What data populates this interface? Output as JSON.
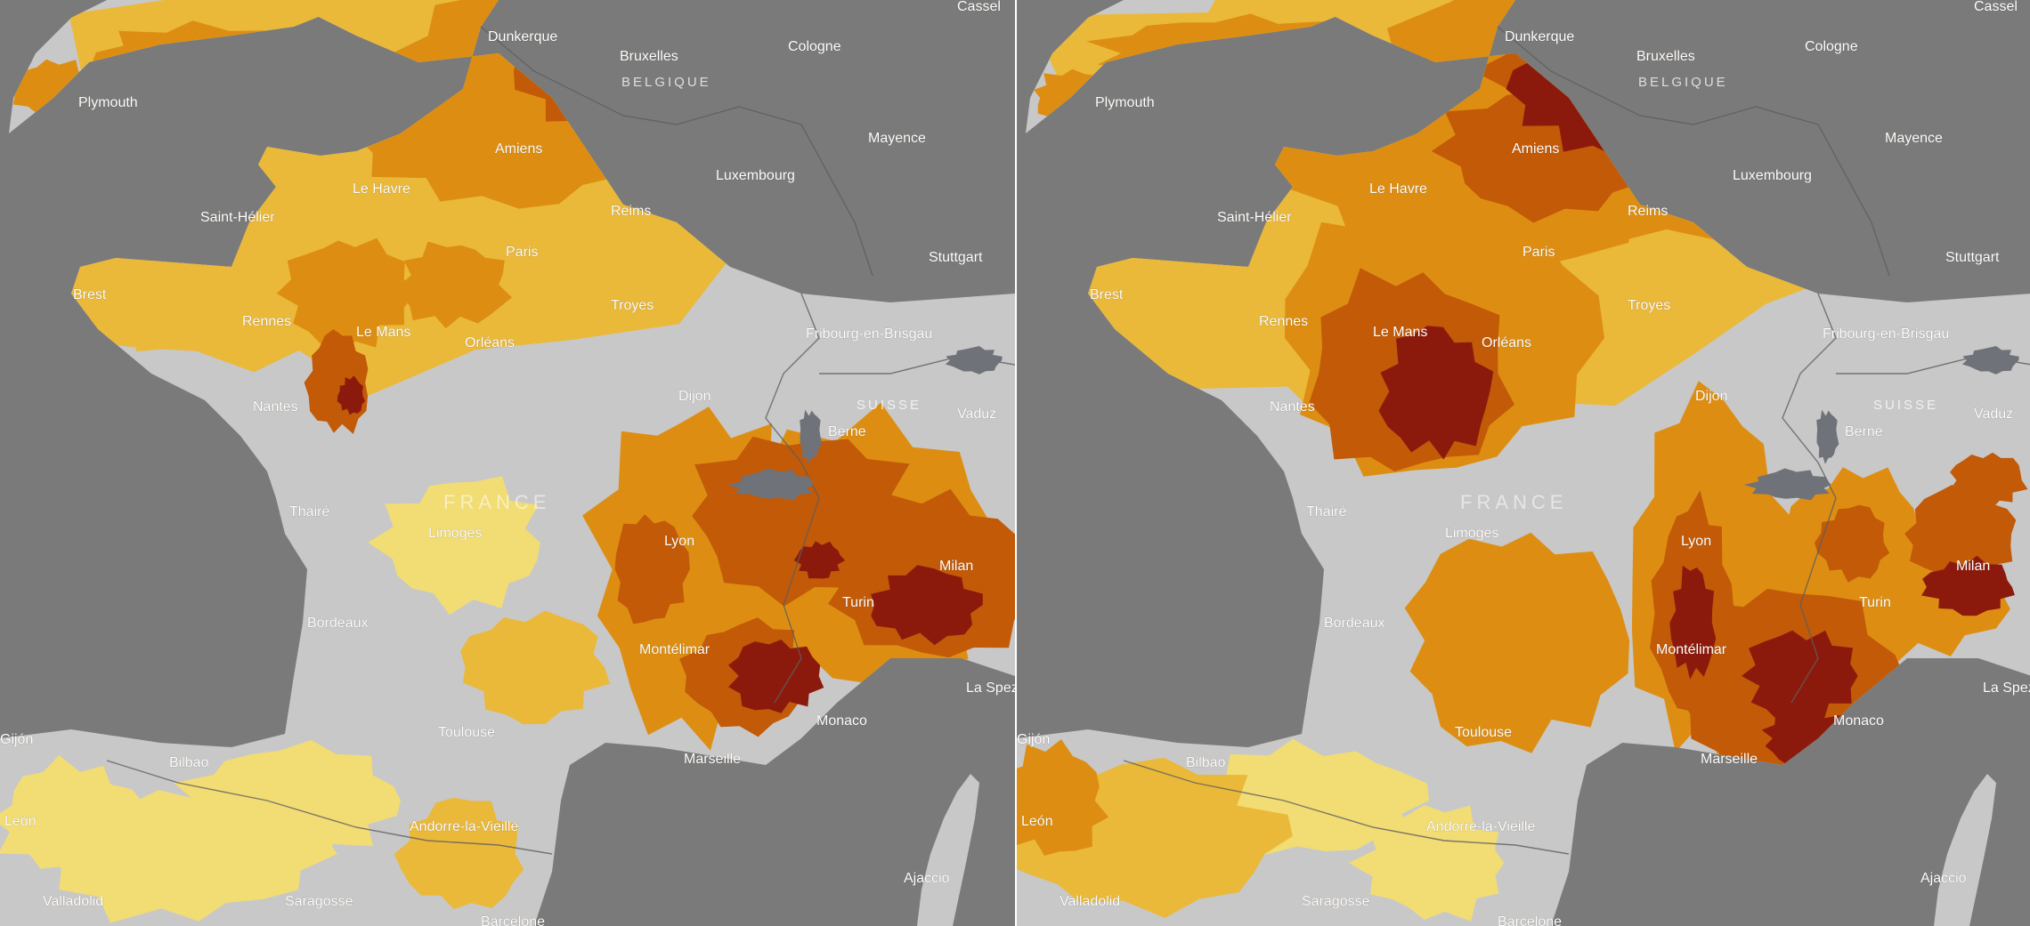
{
  "panels": [
    {
      "id": "left",
      "heat_hotspots": [
        "Bruxelles",
        "Belgique",
        "Le Mans",
        "Lyon",
        "Turin",
        "Milan",
        "Montélimar",
        "Monaco"
      ]
    },
    {
      "id": "right",
      "heat_hotspots": [
        "Bruxelles",
        "Amiens",
        "Le Mans",
        "Lyon",
        "Montélimar",
        "Monaco",
        "Milan"
      ]
    }
  ],
  "labels": {
    "cassel": "Cassel",
    "dunkerque": "Dunkerque",
    "bruxelles": "Bruxelles",
    "belgique": "BELGIQUE",
    "cologne": "Cologne",
    "plymouth": "Plymouth",
    "amiens": "Amiens",
    "mayence": "Mayence",
    "le_havre": "Le Havre",
    "luxembourg": "Luxembourg",
    "saint_helier": "Saint-Hélier",
    "reims": "Reims",
    "paris": "Paris",
    "stuttgart": "Stuttgart",
    "brest": "Brest",
    "rennes": "Rennes",
    "le_mans": "Le Mans",
    "troyes": "Troyes",
    "orleans": "Orléans",
    "fribourg": "Fribourg-en-Brisgau",
    "dijon": "Dijon",
    "nantes": "Nantes",
    "suisse": "SUISSE",
    "vaduz": "Vaduz",
    "berne": "Berne",
    "france": "FRANCE",
    "thaire": "Thairé",
    "limoges": "Limoges",
    "lyon": "Lyon",
    "milan": "Milan",
    "turin": "Turin",
    "bordeaux": "Bordeaux",
    "montelimar": "Montélimar",
    "la_spezia": "La Spezia",
    "monaco": "Monaco",
    "gijon": "Gijón",
    "toulouse": "Toulouse",
    "bilbao": "Bilbao",
    "marseille": "Marseille",
    "leon": "León",
    "andorre": "Andorre-la-Vieille",
    "ajaccio": "Ajaccio",
    "valladolid": "Valladolid",
    "saragosse": "Saragosse",
    "barcelone": "Barcelone"
  },
  "colors": {
    "sea": "#7a7a7a",
    "land_low": "#c8c8c8",
    "heat_1": "#f2dc74",
    "heat_2": "#eab93a",
    "heat_3": "#dd8e12",
    "heat_4": "#c25a08",
    "heat_5": "#8c1a0c"
  }
}
